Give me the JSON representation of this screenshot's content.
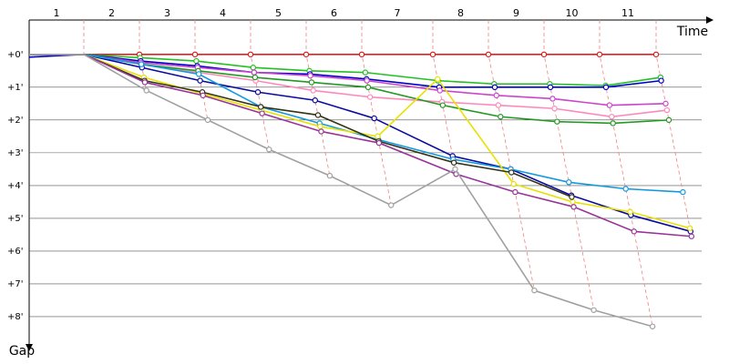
{
  "chart_data": {
    "type": "line",
    "x_label": "Time",
    "y_label": "Gap",
    "categories": [
      "1",
      "2",
      "3",
      "4",
      "5",
      "6",
      "7",
      "8",
      "9",
      "10",
      "11"
    ],
    "ylim": [
      -1.05,
      8.75
    ],
    "yticks": [
      {
        "value": 0,
        "label": "+0'"
      },
      {
        "value": 1,
        "label": "+1'"
      },
      {
        "value": 2,
        "label": "+2'"
      },
      {
        "value": 3,
        "label": "+3'"
      },
      {
        "value": 4,
        "label": "+4'"
      },
      {
        "value": 5,
        "label": "+5'"
      },
      {
        "value": 6,
        "label": "+6'"
      },
      {
        "value": 7,
        "label": "+7'"
      },
      {
        "value": 8,
        "label": "+8'"
      }
    ],
    "grid": true,
    "series": [
      {
        "color": "#e02020",
        "values": [
          0,
          0,
          0,
          0,
          0,
          0,
          0,
          0,
          0,
          0,
          0
        ]
      },
      {
        "color": "#22c022",
        "values": [
          0,
          0.1,
          0.2,
          0.4,
          0.5,
          0.55,
          0.8,
          0.9,
          0.9,
          0.95,
          0.7
        ]
      },
      {
        "color": "#0000cc",
        "values": [
          0,
          0.2,
          0.35,
          0.55,
          0.6,
          0.75,
          1.0,
          1.0,
          1.0,
          1.0,
          0.8
        ]
      },
      {
        "color": "#cc44cc",
        "values": [
          0,
          0.25,
          0.4,
          0.55,
          0.65,
          0.8,
          1.1,
          1.25,
          1.35,
          1.55,
          1.5
        ]
      },
      {
        "color": "#ff88bb",
        "values": [
          0,
          0.3,
          0.55,
          0.8,
          1.1,
          1.3,
          1.45,
          1.55,
          1.65,
          1.9,
          1.7
        ]
      },
      {
        "color": "#229922",
        "values": [
          0,
          0.3,
          0.5,
          0.7,
          0.85,
          1.0,
          1.55,
          1.9,
          2.05,
          2.1,
          2.0
        ]
      },
      {
        "color": "#0a0aa0",
        "values": [
          0,
          0.4,
          0.8,
          1.15,
          1.4,
          1.95,
          3.1,
          3.5,
          4.3,
          4.9,
          5.4
        ]
      },
      {
        "color": "#1199dd",
        "values": [
          0,
          0.3,
          0.6,
          1.6,
          2.1,
          2.6,
          3.2,
          3.5,
          3.9,
          4.1,
          4.2
        ]
      },
      {
        "color": "#e8e000",
        "values": [
          0,
          0.7,
          1.2,
          1.7,
          2.2,
          2.5,
          0.75,
          3.95,
          4.5,
          4.8,
          5.3
        ]
      },
      {
        "color": "#333318",
        "values": [
          0,
          0.8,
          1.15,
          1.6,
          1.85,
          2.65,
          3.3,
          3.6,
          4.35,
          null,
          null
        ]
      },
      {
        "color": "#993399",
        "values": [
          0,
          0.85,
          1.25,
          1.8,
          2.35,
          2.7,
          3.65,
          4.2,
          4.65,
          5.4,
          5.55
        ]
      },
      {
        "color": "#a0a0a0",
        "values": [
          0,
          1.1,
          2.0,
          2.9,
          3.7,
          4.6,
          3.5,
          7.2,
          7.8,
          8.3,
          null
        ]
      }
    ]
  }
}
